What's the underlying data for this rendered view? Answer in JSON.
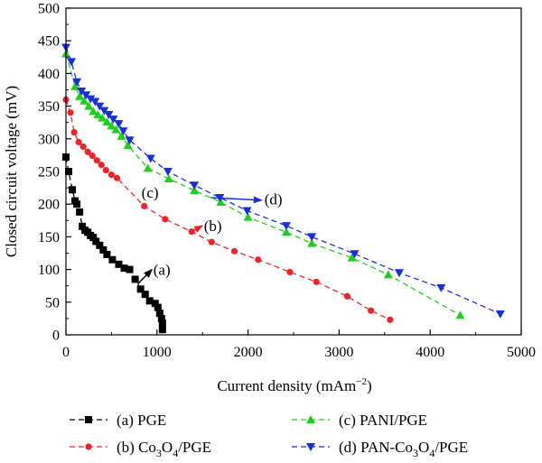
{
  "chart_data": {
    "type": "line",
    "title": "",
    "xlabel": "Current density (mAm",
    "xlabel_sup": "−2",
    "xlabel_end": ")",
    "ylabel": "Closed circuit voltage (mV)",
    "xlim": [
      0,
      5000
    ],
    "ylim": [
      0,
      500
    ],
    "x_ticks": [
      0,
      1000,
      2000,
      3000,
      4000,
      5000
    ],
    "y_ticks": [
      0,
      50,
      100,
      150,
      200,
      250,
      300,
      350,
      400,
      450,
      500
    ],
    "grid": false,
    "legend_position": "bottom",
    "series": [
      {
        "id": "a",
        "legend_parts": [
          {
            "t": "(a) PGE"
          }
        ],
        "color": "#000000",
        "marker": "square",
        "x": [
          0,
          30,
          70,
          100,
          120,
          150,
          180,
          210,
          240,
          270,
          300,
          330,
          370,
          410,
          450,
          510,
          580,
          640,
          700,
          760,
          820,
          870,
          920,
          980,
          1010,
          1030,
          1050,
          1060,
          1060
        ],
        "y": [
          272,
          250,
          222,
          205,
          200,
          188,
          166,
          160,
          157,
          152,
          149,
          143,
          137,
          130,
          123,
          115,
          108,
          102,
          100,
          85,
          70,
          62,
          52,
          48,
          42,
          33,
          25,
          18,
          8
        ]
      },
      {
        "id": "b",
        "legend_parts": [
          {
            "t": "(b) Co"
          },
          {
            "t": "3",
            "sub": true
          },
          {
            "t": "O"
          },
          {
            "t": "4",
            "sub": true
          },
          {
            "t": "/PGE"
          }
        ],
        "color": "#e8262a",
        "marker": "circle",
        "x": [
          0,
          50,
          90,
          140,
          190,
          240,
          290,
          340,
          390,
          440,
          500,
          560,
          860,
          1090,
          1380,
          1600,
          1850,
          2110,
          2460,
          2750,
          3090,
          3350,
          3560
        ],
        "y": [
          360,
          340,
          310,
          295,
          288,
          280,
          274,
          267,
          260,
          252,
          245,
          240,
          197,
          177,
          158,
          142,
          128,
          115,
          96,
          81,
          59,
          37,
          23
        ]
      },
      {
        "id": "c",
        "legend_parts": [
          {
            "t": "(c) PANI/PGE"
          }
        ],
        "color": "#22cc22",
        "marker": "triangle-up",
        "x": [
          0,
          100,
          150,
          200,
          250,
          300,
          350,
          400,
          450,
          500,
          550,
          610,
          680,
          900,
          1130,
          1410,
          1700,
          2000,
          2420,
          2700,
          3140,
          3540,
          4330
        ],
        "y": [
          430,
          380,
          365,
          358,
          350,
          342,
          337,
          332,
          326,
          320,
          314,
          304,
          290,
          255,
          239,
          221,
          203,
          180,
          157,
          140,
          118,
          92,
          30
        ]
      },
      {
        "id": "d",
        "legend_parts": [
          {
            "t": "(d) PAN-Co"
          },
          {
            "t": "3",
            "sub": true
          },
          {
            "t": "O"
          },
          {
            "t": "4",
            "sub": true
          },
          {
            "t": "/PGE"
          }
        ],
        "color": "#1a2fd6",
        "marker": "triangle-down",
        "x": [
          0,
          60,
          120,
          170,
          220,
          270,
          320,
          370,
          420,
          470,
          520,
          580,
          630,
          700,
          930,
          1120,
          1410,
          1690,
          1990,
          2420,
          2700,
          3170,
          3660,
          4120,
          4770
        ],
        "y": [
          440,
          418,
          387,
          373,
          367,
          361,
          357,
          350,
          343,
          337,
          330,
          323,
          312,
          298,
          270,
          250,
          229,
          210,
          190,
          167,
          150,
          124,
          95,
          72,
          32
        ]
      }
    ],
    "annotations": [
      {
        "label": "(a)",
        "arrow_from": [
          790,
          78
        ],
        "arrow_to": [
          945,
          100
        ],
        "text_at": [
          960,
          100
        ]
      },
      {
        "label": "(b)",
        "arrow_from": [
          1380,
          158
        ],
        "arrow_to": [
          1500,
          167
        ],
        "text_at": [
          1515,
          167
        ]
      },
      {
        "label": "(c)",
        "text_at": [
          830,
          218
        ]
      },
      {
        "label": "(d)",
        "arrow_from": [
          1590,
          210
        ],
        "arrow_to": [
          2150,
          206
        ],
        "text_at": [
          2180,
          208
        ]
      }
    ]
  }
}
